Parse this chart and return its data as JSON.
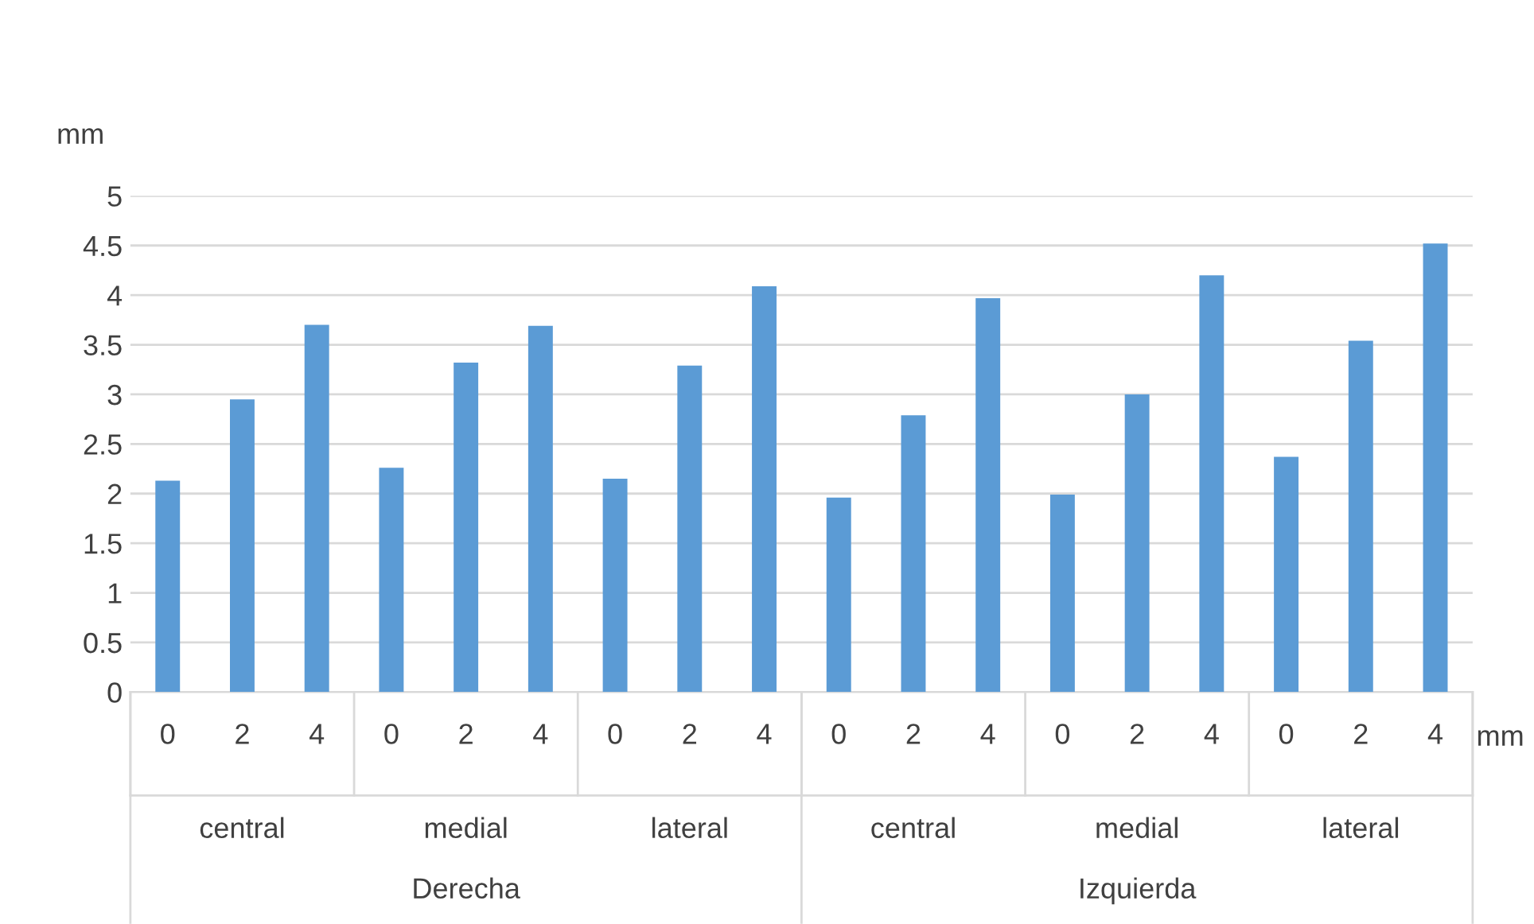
{
  "chart_data": {
    "type": "bar",
    "ylabel": "mm",
    "xlabel": "mm",
    "categories": [
      "0",
      "2",
      "4",
      "0",
      "2",
      "4",
      "0",
      "2",
      "4",
      "0",
      "2",
      "4",
      "0",
      "2",
      "4",
      "0",
      "2",
      "4"
    ],
    "values": [
      2.13,
      2.95,
      3.7,
      2.26,
      3.32,
      3.69,
      2.15,
      3.29,
      4.09,
      1.96,
      2.79,
      3.97,
      1.99,
      3.0,
      4.2,
      2.37,
      3.54,
      4.52
    ],
    "color": "#5b9bd5",
    "annotations": [
      "central",
      "medial",
      "lateral",
      "central",
      "medial",
      "lateral",
      "Derecha",
      "Izquierda"
    ],
    "ylim": [
      0,
      5
    ],
    "yticks": [
      0,
      0.5,
      1,
      1.5,
      2,
      2.5,
      3,
      3.5,
      4,
      4.5,
      5
    ],
    "grid": "y",
    "legend": false
  }
}
